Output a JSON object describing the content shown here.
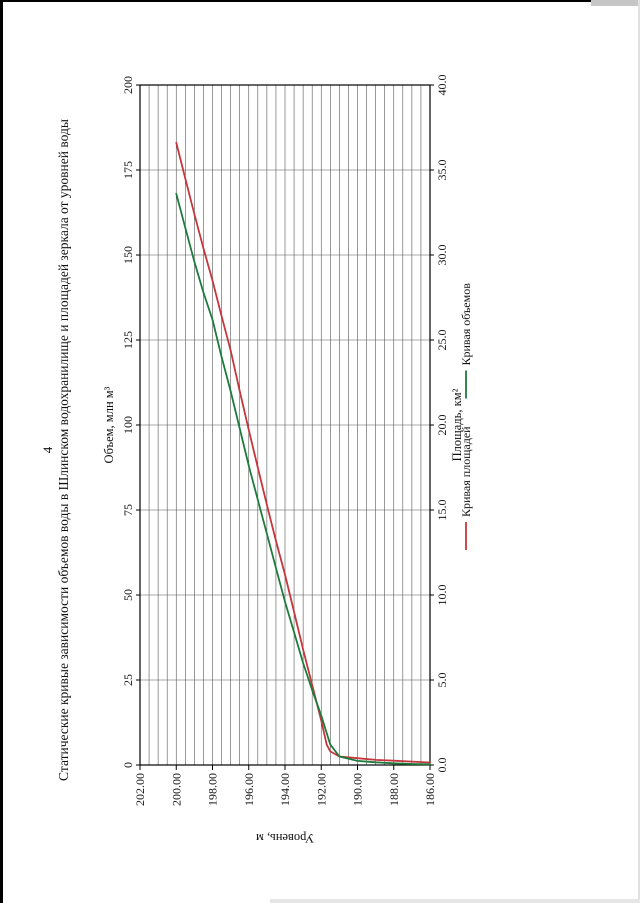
{
  "page": {
    "number": "4"
  },
  "chart_data": {
    "type": "line",
    "title": "Статические кривые зависимости объемов воды в Шлинском водохранилище и площадей зеркала от уровней воды",
    "grid": true,
    "legend_position": "bottom",
    "point_format": "[level_m, value]",
    "axes": {
      "volume": {
        "title": "Объем, млн м³",
        "position": "top",
        "min": 0,
        "max": 200,
        "step": 25,
        "tick_labels": [
          "0",
          "25",
          "50",
          "75",
          "100",
          "125",
          "150",
          "175",
          "200"
        ]
      },
      "area": {
        "title": "Площадь, км²",
        "position": "bottom",
        "min": 0,
        "max": 40,
        "step": 5,
        "tick_labels": [
          "0.0",
          "5.0",
          "10.0",
          "15.0",
          "20.0",
          "25.0",
          "30.0",
          "35.0",
          "40.0"
        ]
      },
      "level": {
        "title": "Уровень, м",
        "position": "left",
        "min": 186,
        "max": 202,
        "major_step": 2,
        "minor_step": 0.5,
        "tick_labels": [
          "186.00",
          "188.00",
          "190.00",
          "192.00",
          "194.00",
          "196.00",
          "198.00",
          "200.00",
          "202.00"
        ]
      }
    },
    "series": [
      {
        "name": "Кривая площадей",
        "color": "#c4373e",
        "axis": "area",
        "points": [
          [
            200,
            36.6
          ],
          [
            199.5,
            34.5
          ],
          [
            199,
            32.4
          ],
          [
            198.5,
            30.4
          ],
          [
            198,
            28.5
          ],
          [
            197.5,
            26.4
          ],
          [
            197,
            24.4
          ],
          [
            196.5,
            22
          ],
          [
            196,
            19.7
          ],
          [
            195.5,
            17.5
          ],
          [
            195,
            15.3
          ],
          [
            194.5,
            13.2
          ],
          [
            194,
            11.2
          ],
          [
            193.5,
            9
          ],
          [
            193,
            6.8
          ],
          [
            192.5,
            4.7
          ],
          [
            192,
            2.6
          ],
          [
            191.7,
            1.2
          ],
          [
            191.5,
            0.8
          ],
          [
            191,
            0.5
          ],
          [
            190,
            0.4
          ],
          [
            189,
            0.3
          ],
          [
            188,
            0.25
          ],
          [
            187,
            0.2
          ],
          [
            186,
            0.15
          ]
        ]
      },
      {
        "name": "Кривая объемов",
        "color": "#1e7b3d",
        "axis": "volume",
        "points": [
          [
            200,
            168
          ],
          [
            199.5,
            158
          ],
          [
            199,
            148
          ],
          [
            198.5,
            139
          ],
          [
            198,
            131
          ],
          [
            197.5,
            120
          ],
          [
            197,
            110
          ],
          [
            196.5,
            99
          ],
          [
            196,
            88
          ],
          [
            195.5,
            78
          ],
          [
            195,
            68
          ],
          [
            194.5,
            58
          ],
          [
            194,
            48
          ],
          [
            193.5,
            39
          ],
          [
            193,
            30
          ],
          [
            192.5,
            22
          ],
          [
            192,
            14.5
          ],
          [
            191.5,
            6
          ],
          [
            191,
            2.5
          ],
          [
            190,
            1.2
          ],
          [
            189,
            0.8
          ],
          [
            188,
            0.5
          ],
          [
            187,
            0.3
          ],
          [
            186,
            0.2
          ]
        ]
      }
    ]
  }
}
